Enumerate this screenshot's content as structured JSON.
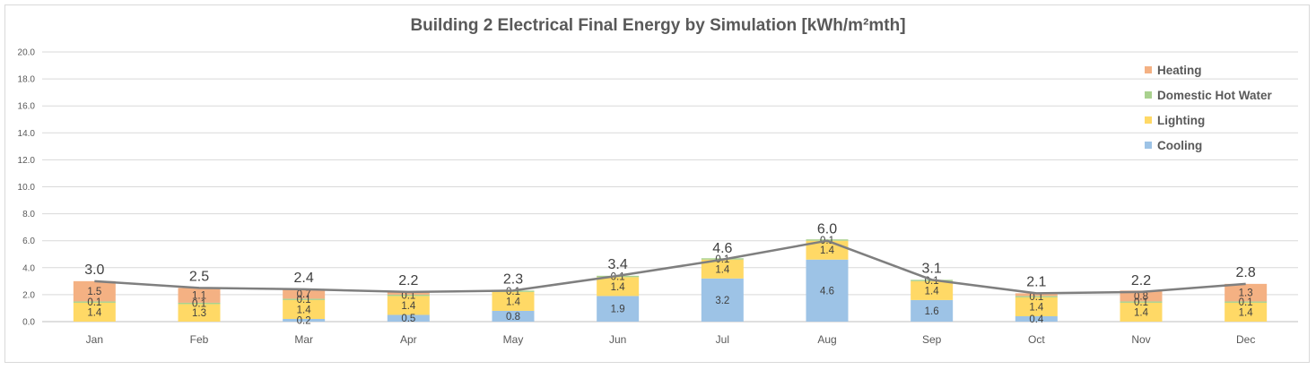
{
  "chart_data": {
    "type": "bar",
    "stacked": true,
    "title": "Building 2 Electrical Final Energy by Simulation [kWh/m²mth]",
    "xlabel": "",
    "ylabel": "",
    "ylim": [
      0,
      20
    ],
    "yticks": [
      "0.0",
      "2.0",
      "4.0",
      "6.0",
      "8.0",
      "10.0",
      "12.0",
      "14.0",
      "16.0",
      "18.0",
      "20.0"
    ],
    "grid": true,
    "legend_position": "top-right",
    "categories": [
      "Jan",
      "Feb",
      "Mar",
      "Apr",
      "May",
      "Jun",
      "Jul",
      "Aug",
      "Sep",
      "Oct",
      "Nov",
      "Dec"
    ],
    "series": [
      {
        "name": "Cooling",
        "color": "#9DC3E6",
        "values": [
          0,
          0,
          0.2,
          0.5,
          0.8,
          1.9,
          3.2,
          4.6,
          1.6,
          0.4,
          0,
          0
        ],
        "labels": [
          "",
          "",
          "0.2",
          "0.5",
          "0.8",
          "1.9",
          "3.2",
          "4.6",
          "1.6",
          "0.4",
          "",
          ""
        ]
      },
      {
        "name": "Lighting",
        "color": "#FFD966",
        "values": [
          1.4,
          1.3,
          1.4,
          1.4,
          1.4,
          1.4,
          1.4,
          1.4,
          1.4,
          1.4,
          1.4,
          1.4
        ],
        "labels": [
          "1.4",
          "1.3",
          "1.4",
          "1.4",
          "1.4",
          "1.4",
          "1.4",
          "1.4",
          "1.4",
          "1.4",
          "1.4",
          "1.4"
        ]
      },
      {
        "name": "Domestic Hot Water",
        "color": "#A9D18E",
        "values": [
          0.1,
          0.1,
          0.1,
          0.1,
          0.1,
          0.1,
          0.1,
          0.1,
          0.1,
          0.1,
          0.1,
          0.1
        ],
        "labels": [
          "0.1",
          "0.1",
          "0.1",
          "0.1",
          "0.1",
          "0.1",
          "0.1",
          "0.1",
          "0.1",
          "0.1",
          "0.1",
          "0.1"
        ]
      },
      {
        "name": "Heating",
        "color": "#F4B183",
        "values": [
          1.5,
          1.1,
          0.7,
          0.2,
          0,
          0,
          0,
          0,
          0,
          0.2,
          0.8,
          1.3
        ],
        "labels": [
          "1.5",
          "1.1",
          "0.7",
          "",
          "",
          "",
          "",
          "",
          "",
          "",
          "0.8",
          "1.3"
        ]
      }
    ],
    "totals": {
      "name": "Total",
      "color": "#7F7F7F",
      "values": [
        3.0,
        2.5,
        2.4,
        2.2,
        2.3,
        3.4,
        4.6,
        6.0,
        3.1,
        2.1,
        2.2,
        2.8
      ],
      "labels": [
        "3.0",
        "2.5",
        "2.4",
        "2.2",
        "2.3",
        "3.4",
        "4.6",
        "6.0",
        "3.1",
        "2.1",
        "2.2",
        "2.8"
      ]
    },
    "legend": [
      {
        "name": "Heating",
        "color": "#F4B183"
      },
      {
        "name": "Domestic Hot Water",
        "color": "#A9D18E"
      },
      {
        "name": "Lighting",
        "color": "#FFD966"
      },
      {
        "name": "Cooling",
        "color": "#9DC3E6"
      }
    ]
  }
}
